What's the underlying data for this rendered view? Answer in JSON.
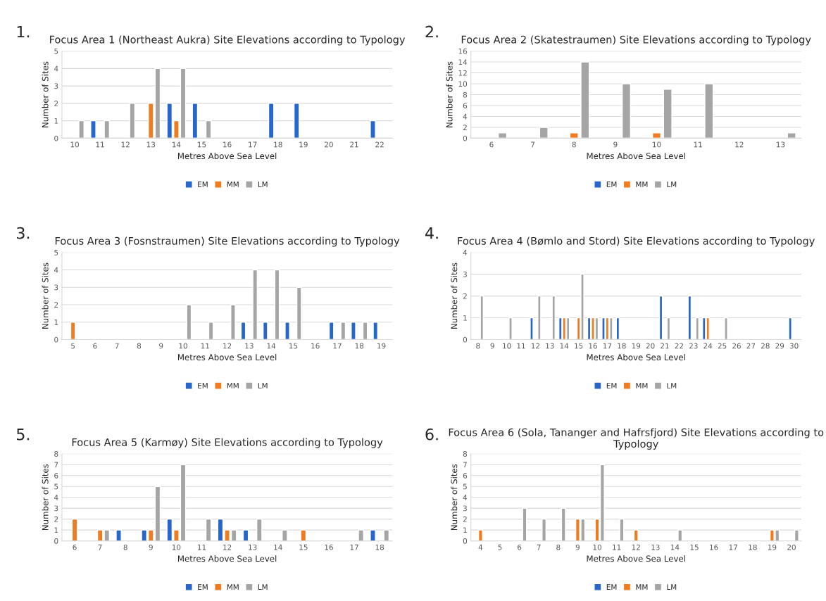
{
  "chart_data": [
    {
      "type": "bar",
      "title": "Focus Area 1 (Northeast Aukra) Site Elevations according to Typology",
      "annotations": [
        "1."
      ],
      "xlabel": "Metres Above Sea Level",
      "ylabel": "Number of Sites",
      "categories": [
        "10",
        "11",
        "12",
        "13",
        "14",
        "15",
        "16",
        "17",
        "18",
        "19",
        "20",
        "21",
        "22"
      ],
      "series": [
        {
          "name": "EM",
          "color": "#2866c9",
          "values": [
            null,
            1,
            null,
            null,
            2,
            2,
            null,
            null,
            2,
            2,
            null,
            null,
            1
          ]
        },
        {
          "name": "MM",
          "color": "#f07b20",
          "values": [
            null,
            null,
            null,
            2,
            1,
            null,
            null,
            null,
            null,
            null,
            null,
            null,
            null
          ]
        },
        {
          "name": "LM",
          "color": "#a5a5a5",
          "values": [
            1,
            1,
            2,
            4,
            4,
            1,
            null,
            null,
            null,
            null,
            null,
            null,
            null
          ]
        }
      ],
      "ylim": [
        0,
        5
      ],
      "yticks": [
        0,
        1,
        2,
        3,
        4,
        5
      ],
      "grid": "y",
      "legend": "bottom"
    },
    {
      "type": "bar",
      "title": "Focus Area 2 (Skatestraumen) Site Elevations according to Typology",
      "annotations": [
        "2."
      ],
      "xlabel": "Metres Above Sea Level",
      "ylabel": "Number of Sites",
      "categories": [
        "6",
        "7",
        "8",
        "9",
        "10",
        "11",
        "12",
        "13"
      ],
      "series": [
        {
          "name": "EM",
          "color": "#2866c9",
          "values": [
            null,
            null,
            null,
            null,
            null,
            null,
            null,
            null
          ]
        },
        {
          "name": "MM",
          "color": "#f07b20",
          "values": [
            null,
            null,
            1,
            null,
            1,
            null,
            null,
            null
          ]
        },
        {
          "name": "LM",
          "color": "#a5a5a5",
          "values": [
            1,
            2,
            14,
            10,
            9,
            10,
            null,
            1
          ]
        }
      ],
      "ylim": [
        0,
        16
      ],
      "yticks": [
        0,
        2,
        4,
        6,
        8,
        10,
        12,
        14,
        16
      ],
      "grid": "y",
      "legend": "bottom"
    },
    {
      "type": "bar",
      "title": "Focus Area 3 (Fosnstraumen) Site Elevations according to Typology",
      "annotations": [
        "3."
      ],
      "xlabel": "Metres Above Sea Level",
      "ylabel": "Number of Sites",
      "categories": [
        "5",
        "6",
        "7",
        "8",
        "9",
        "10",
        "11",
        "12",
        "13",
        "14",
        "15",
        "16",
        "17",
        "18",
        "19"
      ],
      "series": [
        {
          "name": "EM",
          "color": "#2866c9",
          "values": [
            null,
            null,
            null,
            null,
            null,
            null,
            null,
            null,
            1,
            1,
            1,
            null,
            1,
            1,
            1
          ]
        },
        {
          "name": "MM",
          "color": "#f07b20",
          "values": [
            1,
            null,
            null,
            null,
            null,
            null,
            null,
            null,
            null,
            null,
            null,
            null,
            null,
            null,
            null
          ]
        },
        {
          "name": "LM",
          "color": "#a5a5a5",
          "values": [
            null,
            null,
            null,
            null,
            null,
            2,
            1,
            2,
            4,
            4,
            3,
            null,
            1,
            1,
            null
          ]
        }
      ],
      "ylim": [
        0,
        5
      ],
      "yticks": [
        0,
        1,
        2,
        3,
        4,
        5
      ],
      "grid": "y",
      "legend": "bottom"
    },
    {
      "type": "bar",
      "title": "Focus Area 4 (Bømlo and Stord) Site Elevations according to Typology",
      "annotations": [
        "4."
      ],
      "xlabel": "Metres Above Sea Level",
      "ylabel": "Number of Sites",
      "categories": [
        "8",
        "9",
        "10",
        "11",
        "12",
        "13",
        "14",
        "15",
        "16",
        "17",
        "18",
        "19",
        "20",
        "21",
        "22",
        "23",
        "24",
        "25",
        "26",
        "27",
        "28",
        "29",
        "30"
      ],
      "series": [
        {
          "name": "EM",
          "color": "#2866c9",
          "values": [
            null,
            null,
            null,
            null,
            1,
            null,
            1,
            null,
            1,
            1,
            1,
            null,
            null,
            2,
            null,
            2,
            1,
            null,
            null,
            null,
            null,
            null,
            1
          ]
        },
        {
          "name": "MM",
          "color": "#f07b20",
          "values": [
            null,
            null,
            null,
            null,
            null,
            null,
            1,
            1,
            1,
            1,
            null,
            null,
            null,
            null,
            null,
            null,
            1,
            null,
            null,
            null,
            null,
            null,
            null
          ]
        },
        {
          "name": "LM",
          "color": "#a5a5a5",
          "values": [
            2,
            null,
            1,
            null,
            2,
            2,
            1,
            3,
            1,
            1,
            null,
            null,
            null,
            1,
            null,
            1,
            null,
            1,
            null,
            null,
            null,
            null,
            null
          ]
        }
      ],
      "ylim": [
        0,
        4
      ],
      "yticks": [
        0,
        1,
        2,
        3,
        4
      ],
      "grid": "y",
      "legend": "bottom"
    },
    {
      "type": "bar",
      "title": "Focus Area 5 (Karmøy) Site Elevations according to Typology",
      "annotations": [
        "5."
      ],
      "xlabel": "Metres Above Sea Level",
      "ylabel": "Number of Sites",
      "categories": [
        "6",
        "7",
        "8",
        "9",
        "10",
        "11",
        "12",
        "13",
        "14",
        "15",
        "16",
        "17",
        "18"
      ],
      "series": [
        {
          "name": "EM",
          "color": "#2866c9",
          "values": [
            null,
            null,
            1,
            1,
            2,
            null,
            2,
            1,
            null,
            null,
            null,
            null,
            1
          ]
        },
        {
          "name": "MM",
          "color": "#f07b20",
          "values": [
            2,
            1,
            null,
            1,
            1,
            null,
            1,
            null,
            null,
            1,
            null,
            null,
            null
          ]
        },
        {
          "name": "LM",
          "color": "#a5a5a5",
          "values": [
            null,
            1,
            null,
            5,
            7,
            2,
            1,
            2,
            1,
            null,
            null,
            1,
            1
          ]
        }
      ],
      "ylim": [
        0,
        8
      ],
      "yticks": [
        0,
        1,
        2,
        3,
        4,
        5,
        6,
        7,
        8
      ],
      "grid": "y",
      "legend": "bottom"
    },
    {
      "type": "bar",
      "title": "Focus Area 6 (Sola, Tananger and Hafrsfjord) Site Elevations according to Typology",
      "annotations": [
        "6."
      ],
      "xlabel": "Metres Above Sea Level",
      "ylabel": "Number of Sites",
      "categories": [
        "4",
        "5",
        "6",
        "7",
        "8",
        "9",
        "10",
        "11",
        "12",
        "13",
        "14",
        "15",
        "16",
        "17",
        "18",
        "19",
        "20"
      ],
      "series": [
        {
          "name": "EM",
          "color": "#2866c9",
          "values": [
            null,
            null,
            null,
            null,
            null,
            null,
            null,
            null,
            null,
            null,
            null,
            null,
            null,
            null,
            null,
            null,
            null
          ]
        },
        {
          "name": "MM",
          "color": "#f07b20",
          "values": [
            1,
            null,
            null,
            null,
            null,
            2,
            2,
            null,
            1,
            null,
            null,
            null,
            null,
            null,
            null,
            1,
            null
          ]
        },
        {
          "name": "LM",
          "color": "#a5a5a5",
          "values": [
            null,
            null,
            3,
            2,
            3,
            2,
            7,
            2,
            null,
            null,
            1,
            null,
            null,
            null,
            null,
            1,
            1
          ]
        }
      ],
      "ylim": [
        0,
        8
      ],
      "yticks": [
        0,
        1,
        2,
        3,
        4,
        5,
        6,
        7,
        8
      ],
      "grid": "y",
      "legend": "bottom"
    }
  ]
}
